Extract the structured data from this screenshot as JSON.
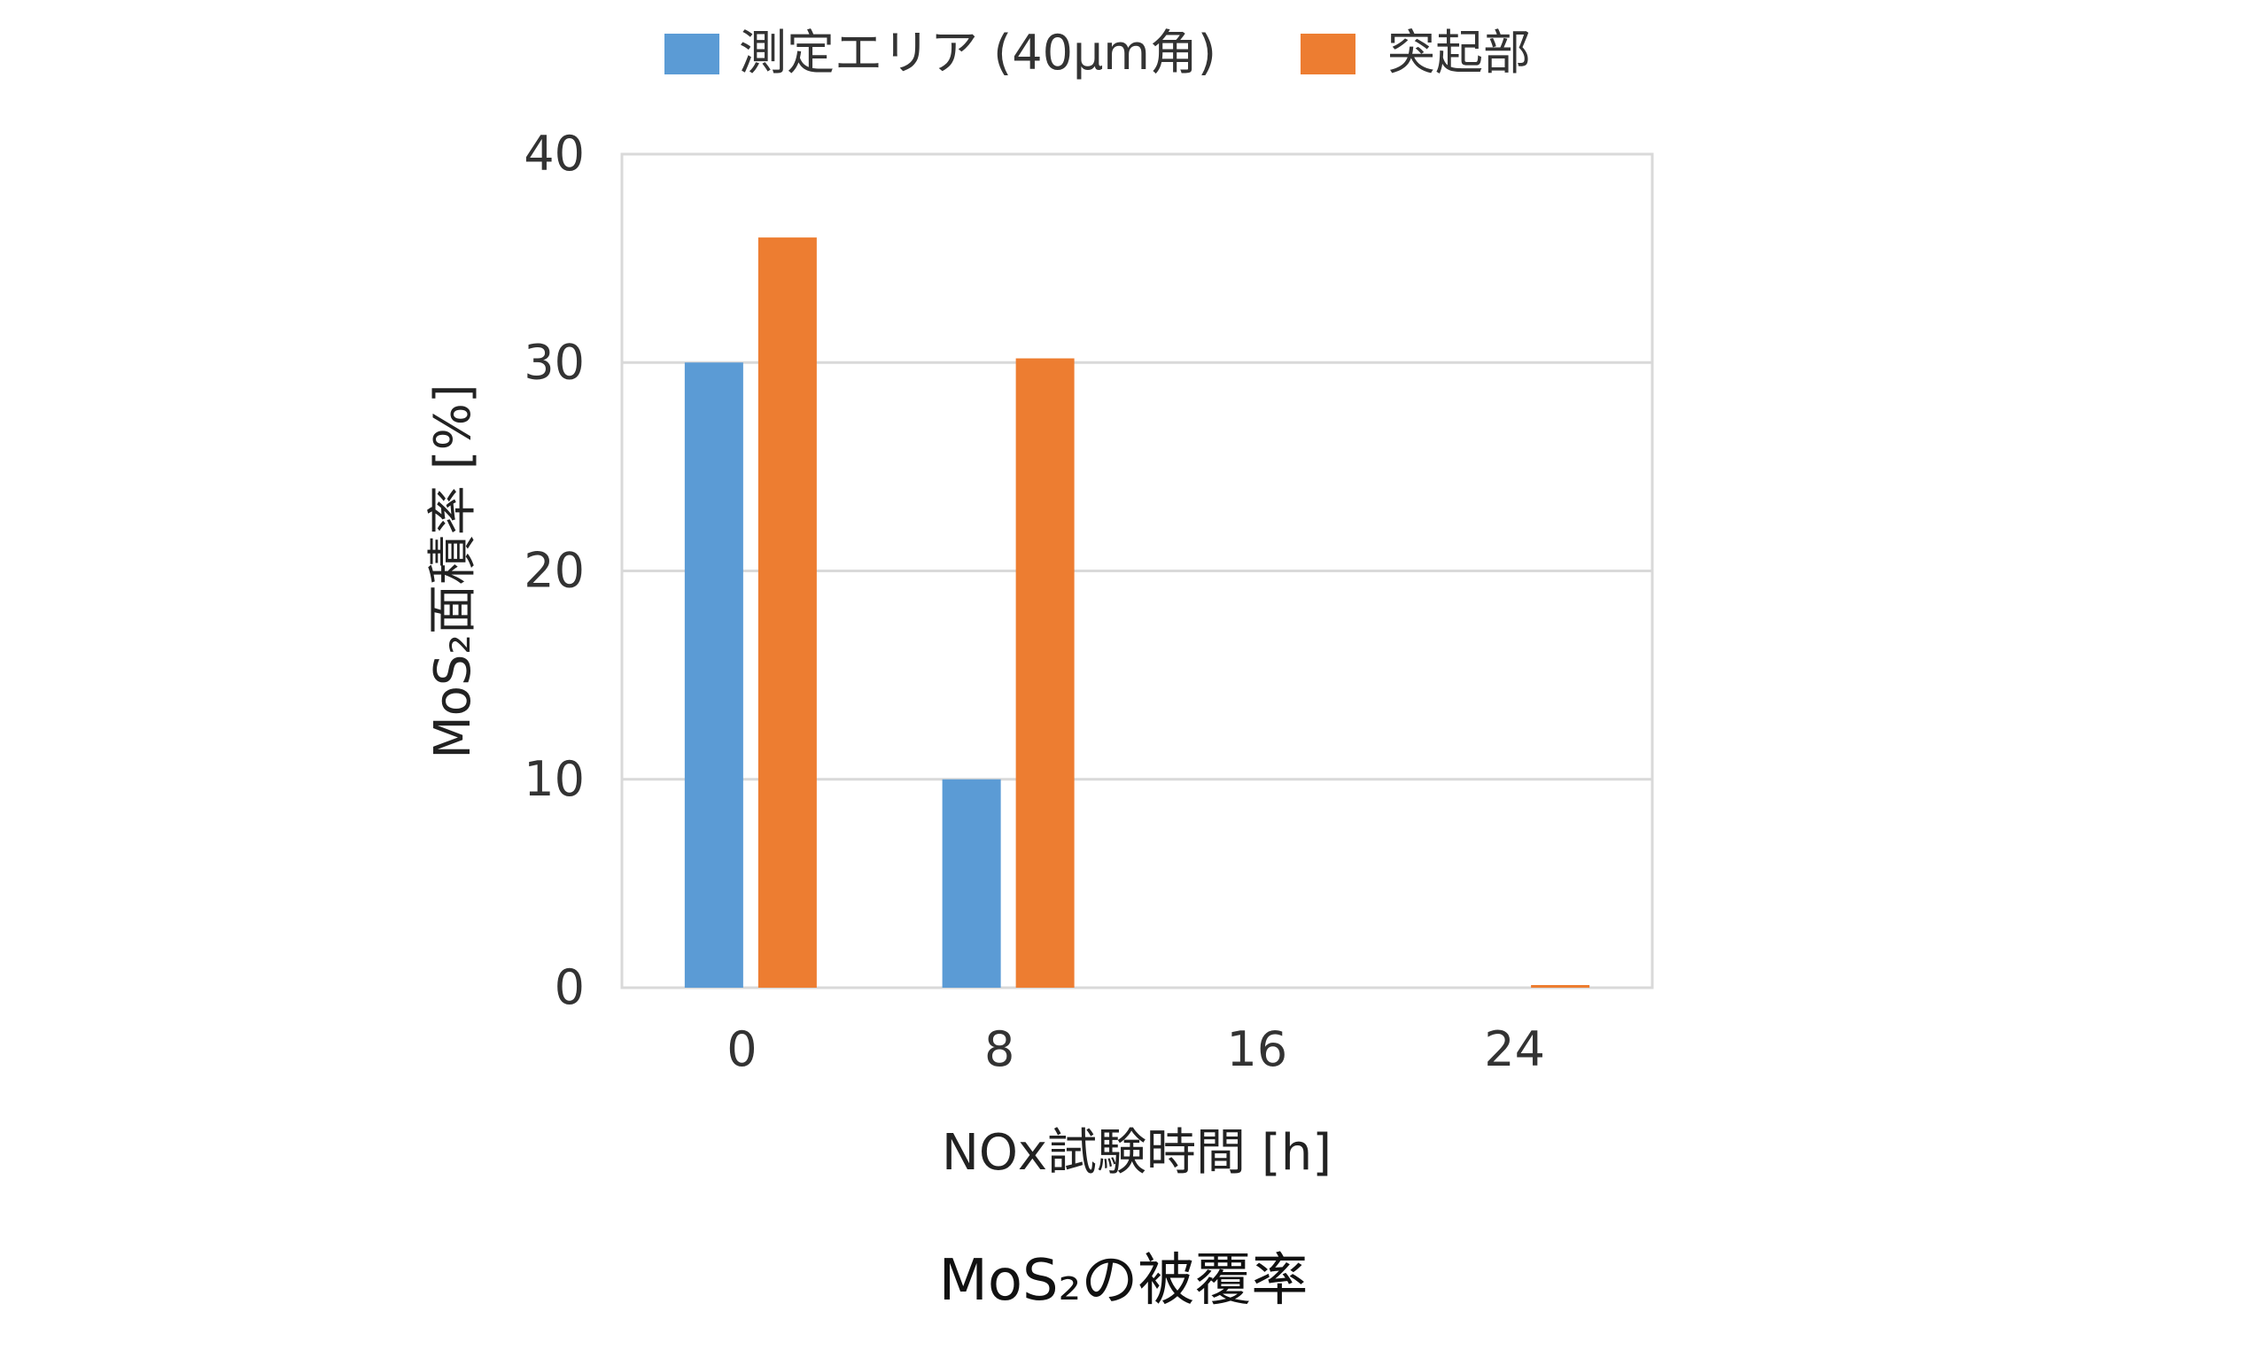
{
  "chart_data": {
    "type": "bar",
    "title": "MoS₂の被覆率",
    "xlabel": "NOx試験時間 [h]",
    "ylabel": "MoS₂面積率 [%]",
    "categories": [
      "0",
      "8",
      "16",
      "24"
    ],
    "ylim": [
      0,
      40
    ],
    "yticks": [
      0,
      10,
      20,
      30,
      40
    ],
    "grid": true,
    "legend_position": "top",
    "series": [
      {
        "name": "測定エリア (40μm角)",
        "color": "#5b9bd5",
        "values": [
          30,
          10,
          0,
          0
        ]
      },
      {
        "name": "突起部",
        "color": "#ed7d31",
        "values": [
          36,
          30.2,
          0,
          0.1
        ]
      }
    ]
  }
}
